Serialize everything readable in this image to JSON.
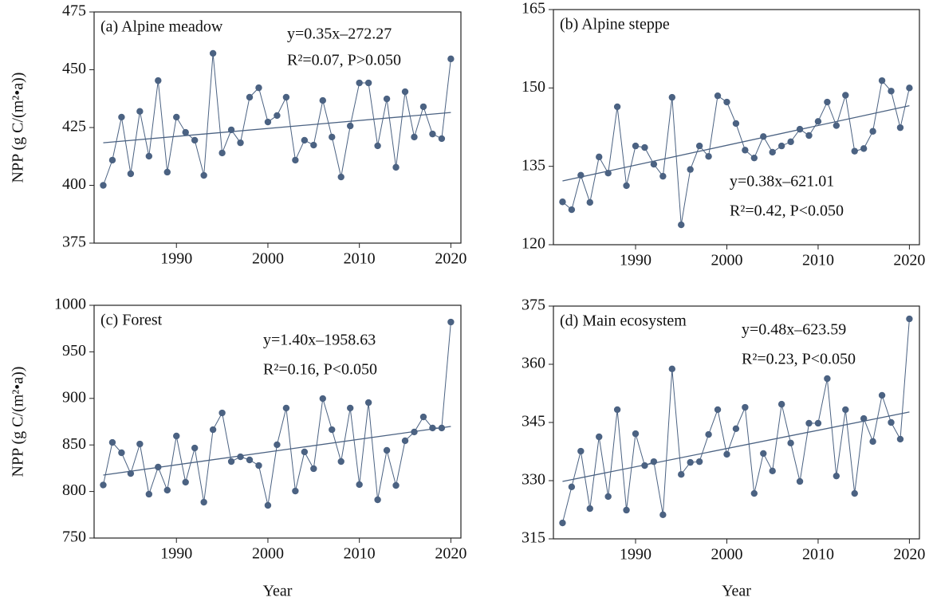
{
  "chart_data": [
    {
      "type": "line",
      "title": "(a) Alpine meadow",
      "annotations": [
        "y=0.35x–272.27",
        "R²=0.07, P>0.050"
      ],
      "y_label": "NPP (g C/(m²•a))",
      "x": [
        1982,
        1983,
        1984,
        1985,
        1986,
        1987,
        1988,
        1989,
        1990,
        1991,
        1992,
        1993,
        1994,
        1995,
        1996,
        1997,
        1998,
        1999,
        2000,
        2001,
        2002,
        2003,
        2004,
        2005,
        2006,
        2007,
        2008,
        2009,
        2010,
        2011,
        2012,
        2013,
        2014,
        2015,
        2016,
        2017,
        2018,
        2019,
        2020
      ],
      "values": [
        400,
        410.9,
        429.5,
        405,
        432,
        412.6,
        445.3,
        405.7,
        429.5,
        422.9,
        419.5,
        404.3,
        457.1,
        414,
        424,
        418.4,
        438.1,
        442.2,
        427.4,
        430.2,
        438.1,
        410.9,
        419.5,
        417.4,
        436.7,
        420.9,
        403.6,
        425.7,
        444.3,
        444.3,
        417.1,
        437.4,
        407.8,
        440.5,
        420.9,
        434,
        422.2,
        420.2,
        454.7
      ],
      "color": "#4b6282",
      "trend": {
        "x": [
          1982,
          2020
        ],
        "values": [
          418.4,
          431.5
        ]
      },
      "xlim": [
        1981,
        2021.1
      ],
      "xticks": [
        1990,
        2000,
        2010,
        2020
      ],
      "ylim": [
        375,
        475
      ],
      "yticks": [
        375,
        400,
        425,
        450,
        475
      ]
    },
    {
      "type": "line",
      "title": "(b) Alpine steppe",
      "annotations": [
        "y=0.38x–621.01",
        "R²=0.42, P<0.050"
      ],
      "x": [
        1982,
        1983,
        1984,
        1985,
        1986,
        1987,
        1988,
        1989,
        1990,
        1991,
        1992,
        1993,
        1994,
        1995,
        1996,
        1997,
        1998,
        1999,
        2000,
        2001,
        2002,
        2003,
        2004,
        2005,
        2006,
        2007,
        2008,
        2009,
        2010,
        2011,
        2012,
        2013,
        2014,
        2015,
        2016,
        2017,
        2018,
        2019,
        2020
      ],
      "values": [
        128.2,
        126.7,
        133.3,
        128.1,
        136.8,
        133.7,
        146.4,
        131.3,
        138.9,
        138.6,
        135.4,
        133.1,
        148.2,
        123.8,
        134.4,
        138.9,
        136.9,
        148.5,
        147.3,
        143.2,
        138.1,
        136.6,
        140.7,
        137.7,
        138.9,
        139.7,
        142.1,
        140.9,
        143.6,
        147.3,
        142.8,
        148.6,
        137.9,
        138.4,
        141.7,
        151.4,
        149.4,
        142.4,
        150
      ],
      "color": "#4b6282",
      "trend": {
        "x": [
          1982,
          2020
        ],
        "values": [
          132.2,
          146.6
        ]
      },
      "xlim": [
        1981,
        2021.1
      ],
      "xticks": [
        1990,
        2000,
        2010,
        2020
      ],
      "ylim": [
        120,
        165
      ],
      "yticks": [
        120,
        135,
        150,
        165
      ]
    },
    {
      "type": "line",
      "title": "(c) Forest",
      "annotations": [
        "y=1.40x–1958.63",
        "R²=0.16, P<0.050"
      ],
      "y_label": "NPP (g C/(m²•a))",
      "x_label": "Year",
      "x": [
        1982,
        1983,
        1984,
        1985,
        1986,
        1987,
        1988,
        1989,
        1990,
        1991,
        1992,
        1993,
        1994,
        1995,
        1996,
        1997,
        1998,
        1999,
        2000,
        2001,
        2002,
        2003,
        2004,
        2005,
        2006,
        2007,
        2008,
        2009,
        2010,
        2011,
        2012,
        2013,
        2014,
        2015,
        2016,
        2017,
        2018,
        2019,
        2020
      ],
      "values": [
        807,
        852.7,
        841.6,
        819.3,
        851,
        797.1,
        826.2,
        801.4,
        859.6,
        810,
        846.7,
        788.5,
        866.4,
        884.4,
        832.2,
        837.3,
        833.9,
        827.9,
        785.1,
        850.2,
        889.6,
        800.5,
        842.5,
        824.5,
        899.8,
        866.4,
        832.2,
        889.6,
        807.4,
        895.5,
        791.1,
        844.2,
        806.5,
        854.5,
        863.9,
        880.1,
        868.2,
        868.2,
        982
      ],
      "color": "#4b6282",
      "trend": {
        "x": [
          1982,
          2020
        ],
        "values": [
          817.6,
          869.9
        ]
      },
      "xlim": [
        1981,
        2021.1
      ],
      "xticks": [
        1990,
        2000,
        2010,
        2020
      ],
      "ylim": [
        750,
        1000
      ],
      "yticks": [
        750,
        800,
        850,
        900,
        950,
        1000
      ]
    },
    {
      "type": "line",
      "title": "(d) Main ecosystem",
      "annotations": [
        "y=0.48x–623.59",
        "R²=0.23, P<0.050"
      ],
      "x_label": "Year",
      "x": [
        1982,
        1983,
        1984,
        1985,
        1986,
        1987,
        1988,
        1989,
        1990,
        1991,
        1992,
        1993,
        1994,
        1995,
        1996,
        1997,
        1998,
        1999,
        2000,
        2001,
        2002,
        2003,
        2004,
        2005,
        2006,
        2007,
        2008,
        2009,
        2010,
        2011,
        2012,
        2013,
        2014,
        2015,
        2016,
        2017,
        2018,
        2019,
        2020
      ],
      "values": [
        319.1,
        328.4,
        337.6,
        322.8,
        341.3,
        325.9,
        348.3,
        322.4,
        342.1,
        333.9,
        334.9,
        321.2,
        358.8,
        331.6,
        334.7,
        334.9,
        341.9,
        348.3,
        336.8,
        343.4,
        348.9,
        326.7,
        337,
        332.5,
        349.7,
        339.7,
        329.8,
        344.8,
        344.8,
        356.3,
        331.2,
        348.3,
        326.7,
        346,
        340.1,
        352,
        345,
        340.7,
        371.7
      ],
      "color": "#4b6282",
      "trend": {
        "x": [
          1982,
          2020
        ],
        "values": [
          329.8,
          347.7
        ]
      },
      "xlim": [
        1981,
        2021.1
      ],
      "xticks": [
        1990,
        2000,
        2010,
        2020
      ],
      "ylim": [
        315,
        375
      ],
      "yticks": [
        315,
        330,
        345,
        360,
        375
      ]
    }
  ]
}
